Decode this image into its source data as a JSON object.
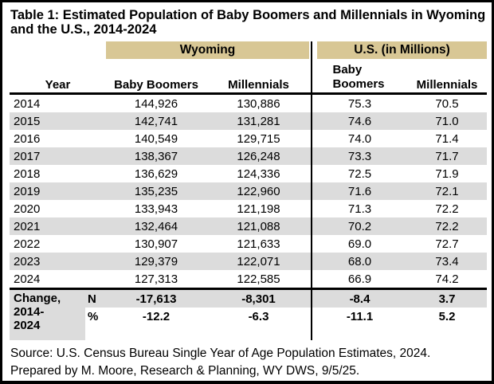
{
  "title": {
    "line1": "Table 1: Estimated Population of Baby Boomers and Millennials in Wyoming",
    "line2": "and the U.S., 2014-2024"
  },
  "table": {
    "group_headers": {
      "wyoming": "Wyoming",
      "us": "U.S. (in Millions)"
    },
    "columns": {
      "year": "Year",
      "wy_boomers": "Baby Boomers",
      "wy_millennials": "Millennials",
      "us_boomers": "Baby Boomers",
      "us_millennials": "Millennials"
    },
    "rows": [
      {
        "year": "2014",
        "wy_bb": "144,926",
        "wy_mill": "130,886",
        "us_bb": "75.3",
        "us_mill": "70.5"
      },
      {
        "year": "2015",
        "wy_bb": "142,741",
        "wy_mill": "131,281",
        "us_bb": "74.6",
        "us_mill": "71.0"
      },
      {
        "year": "2016",
        "wy_bb": "140,549",
        "wy_mill": "129,715",
        "us_bb": "74.0",
        "us_mill": "71.4"
      },
      {
        "year": "2017",
        "wy_bb": "138,367",
        "wy_mill": "126,248",
        "us_bb": "73.3",
        "us_mill": "71.7"
      },
      {
        "year": "2018",
        "wy_bb": "136,629",
        "wy_mill": "124,336",
        "us_bb": "72.5",
        "us_mill": "71.9"
      },
      {
        "year": "2019",
        "wy_bb": "135,235",
        "wy_mill": "122,960",
        "us_bb": "71.6",
        "us_mill": "72.1"
      },
      {
        "year": "2020",
        "wy_bb": "133,943",
        "wy_mill": "121,198",
        "us_bb": "71.3",
        "us_mill": "72.2"
      },
      {
        "year": "2021",
        "wy_bb": "132,464",
        "wy_mill": "121,088",
        "us_bb": "70.2",
        "us_mill": "72.2"
      },
      {
        "year": "2022",
        "wy_bb": "130,907",
        "wy_mill": "121,633",
        "us_bb": "69.0",
        "us_mill": "72.7"
      },
      {
        "year": "2023",
        "wy_bb": "129,379",
        "wy_mill": "122,071",
        "us_bb": "68.0",
        "us_mill": "73.4"
      },
      {
        "year": "2024",
        "wy_bb": "127,313",
        "wy_mill": "122,585",
        "us_bb": "66.9",
        "us_mill": "74.2"
      }
    ],
    "change": {
      "label": "Change, 2014-2024",
      "rows": [
        {
          "stat": "N",
          "wy_bb": "-17,613",
          "wy_mill": "-8,301",
          "us_bb": "-8.4",
          "us_mill": "3.7"
        },
        {
          "stat": "%",
          "wy_bb": "-12.2",
          "wy_mill": "-6.3",
          "us_bb": "-11.1",
          "us_mill": "5.2"
        }
      ]
    }
  },
  "footer": {
    "source_line": "Source: U.S. Census Bureau Single Year of Age Population Estimates, 2024.",
    "prepared_line": "Prepared by M. Moore, Research & Planning, WY DWS, 9/5/25."
  },
  "colors": {
    "tan_band": "#d8c795",
    "row_band_gray": "#dcdcdc",
    "border_black": "#000000"
  }
}
